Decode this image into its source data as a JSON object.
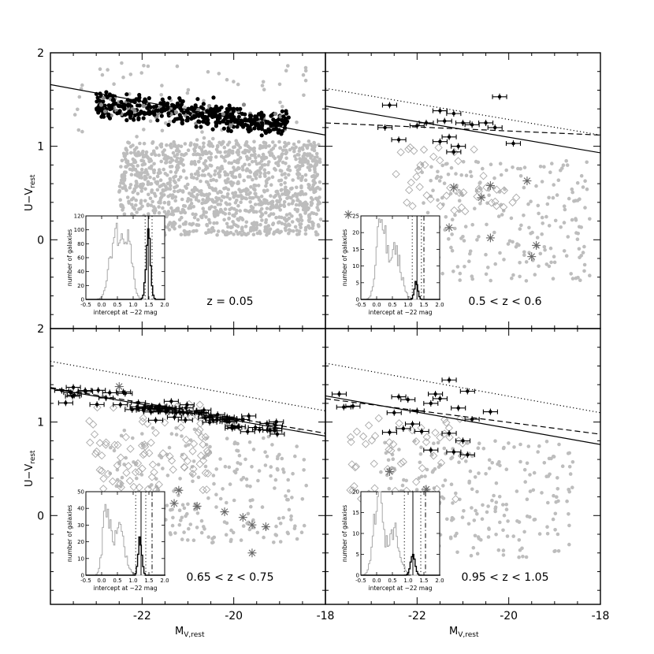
{
  "figure": {
    "xlabel_main": "M",
    "xlabel_sub": "V,rest",
    "ylabel_main": "U−V",
    "ylabel_sub": "rest",
    "x_tick_labels_left": [
      "-22",
      "-20",
      "-18"
    ],
    "x_tick_labels_right": [
      "-22",
      "-20",
      "-18"
    ],
    "y_tick_labels_top": [
      "2",
      "1",
      "0"
    ],
    "y_tick_labels_bottom": [
      "2",
      "1",
      "0"
    ],
    "inset_xlabel": "intercept at −22 mag",
    "inset_ylabel": "number of galaxies",
    "inset_x_tick_labels": [
      "-0.5",
      "0.0",
      "0.5",
      "1.0",
      "1.5",
      "2.0"
    ]
  },
  "chart_data": [
    {
      "type": "scatter",
      "panel": "top-left",
      "label": "z = 0.05",
      "xlim": [
        -24,
        -18
      ],
      "ylim": [
        -0.95,
        2.0
      ],
      "lines": [
        {
          "style": "solid",
          "x": [
            -24,
            -18
          ],
          "y": [
            1.66,
            1.12
          ]
        }
      ],
      "black_clusters": [
        {
          "xmin": -23.0,
          "xmax": -18.8,
          "y_at_min": 1.45,
          "y_at_max": 1.25,
          "scatter": 0.13,
          "n": 480
        }
      ],
      "gray_clusters": [
        {
          "xmin": -22.5,
          "xmax": -18.1,
          "ymin": 0.05,
          "ymax": 1.05,
          "n": 1300
        },
        {
          "xmin": -23.5,
          "xmax": -18.2,
          "ymin": 0.9,
          "ymax": 1.9,
          "n": 80
        }
      ],
      "inset": {
        "ylim": [
          0,
          120
        ],
        "y_tick_labels": [
          "0",
          "20",
          "40",
          "60",
          "80",
          "100",
          "120"
        ],
        "xlim": [
          -0.5,
          2.0
        ],
        "vlines": [
          {
            "style": "solid",
            "x": 1.48
          },
          {
            "style": "dotted",
            "x": 1.38
          },
          {
            "style": "dotted",
            "x": 1.6
          }
        ],
        "gray_hist_peaks": [
          {
            "center": 0.45,
            "width": 0.25,
            "height": 100
          },
          {
            "center": 0.85,
            "width": 0.18,
            "height": 95
          }
        ],
        "black_hist_peaks": [
          {
            "center": 1.48,
            "width": 0.1,
            "height": 90
          }
        ]
      }
    },
    {
      "type": "scatter",
      "panel": "top-right",
      "label": "0.5 < z < 0.6",
      "xlim": [
        -24,
        -18
      ],
      "ylim": [
        -0.95,
        2.0
      ],
      "lines": [
        {
          "style": "dotted",
          "x": [
            -24,
            -18
          ],
          "y": [
            1.62,
            1.12
          ]
        },
        {
          "style": "solid",
          "x": [
            -24,
            -18
          ],
          "y": [
            1.43,
            0.93
          ]
        },
        {
          "style": "dashed",
          "x": [
            -24,
            -18
          ],
          "y": [
            1.25,
            1.12
          ]
        }
      ],
      "errorbar_points": [
        {
          "x": -22.6,
          "y": 1.44
        },
        {
          "x": -22.7,
          "y": 1.2
        },
        {
          "x": -22.4,
          "y": 1.07
        },
        {
          "x": -21.5,
          "y": 1.38
        },
        {
          "x": -21.4,
          "y": 1.27
        },
        {
          "x": -21.2,
          "y": 1.35
        },
        {
          "x": -21.8,
          "y": 1.25
        },
        {
          "x": -21.0,
          "y": 1.25
        },
        {
          "x": -21.3,
          "y": 1.1
        },
        {
          "x": -21.1,
          "y": 1.0
        },
        {
          "x": -20.5,
          "y": 1.25
        },
        {
          "x": -20.3,
          "y": 1.2
        },
        {
          "x": -20.2,
          "y": 1.53
        },
        {
          "x": -19.9,
          "y": 1.03
        },
        {
          "x": -21.5,
          "y": 1.05
        },
        {
          "x": -21.2,
          "y": 0.94
        },
        {
          "x": -22.0,
          "y": 1.22
        },
        {
          "x": -20.8,
          "y": 1.23
        }
      ],
      "diamond_region": {
        "xmin": -22.5,
        "xmax": -19.8,
        "ymin": 0.3,
        "ymax": 1.0,
        "n": 45
      },
      "asterisk_points": [
        {
          "x": -23.5,
          "y": 0.27
        },
        {
          "x": -21.2,
          "y": 0.56
        },
        {
          "x": -20.6,
          "y": 0.45
        },
        {
          "x": -20.4,
          "y": 0.58
        },
        {
          "x": -19.6,
          "y": 0.63
        },
        {
          "x": -21.3,
          "y": 0.13
        },
        {
          "x": -20.4,
          "y": 0.02
        },
        {
          "x": -19.4,
          "y": -0.06
        },
        {
          "x": -19.5,
          "y": -0.18
        }
      ],
      "gray_clusters": [
        {
          "xmin": -22.0,
          "xmax": -18.2,
          "ymin": -0.45,
          "ymax": 0.85,
          "n": 230
        }
      ],
      "inset": {
        "ylim": [
          0,
          25
        ],
        "y_tick_labels": [
          "0",
          "5",
          "10",
          "15",
          "20",
          "25"
        ],
        "xlim": [
          -0.5,
          2.0
        ],
        "vlines": [
          {
            "style": "solid",
            "x": 1.28
          },
          {
            "style": "dotted",
            "x": 1.13
          },
          {
            "style": "dotted",
            "x": 1.42
          },
          {
            "style": "dashdot",
            "x": 1.5
          }
        ],
        "gray_hist_peaks": [
          {
            "center": 0.15,
            "width": 0.2,
            "height": 24
          },
          {
            "center": 0.6,
            "width": 0.25,
            "height": 14
          }
        ],
        "black_hist_peaks": [
          {
            "center": 1.25,
            "width": 0.08,
            "height": 5
          }
        ]
      }
    },
    {
      "type": "scatter",
      "panel": "bottom-left",
      "label": "0.65 < z < 0.75",
      "xlim": [
        -24,
        -18
      ],
      "ylim": [
        -0.95,
        2.0
      ],
      "lines": [
        {
          "style": "dotted",
          "x": [
            -24,
            -18
          ],
          "y": [
            1.65,
            1.12
          ]
        },
        {
          "style": "solid",
          "x": [
            -24,
            -18
          ],
          "y": [
            1.36,
            0.85
          ]
        },
        {
          "style": "dashed",
          "x": [
            -24,
            -18
          ],
          "y": [
            1.37,
            0.88
          ]
        }
      ],
      "errorbar_region": {
        "xmin": -23.8,
        "xmax": -19.0,
        "y_at_min": 1.33,
        "y_at_max": 0.92,
        "scatter": 0.11,
        "n": 80
      },
      "diamond_region": {
        "xmin": -23.2,
        "xmax": -20.5,
        "ymin": 0.25,
        "ymax": 1.2,
        "n": 90
      },
      "asterisk_points": [
        {
          "x": -22.5,
          "y": 1.38
        },
        {
          "x": -21.2,
          "y": 0.27
        },
        {
          "x": -21.3,
          "y": 0.13
        },
        {
          "x": -20.8,
          "y": 0.1
        },
        {
          "x": -20.2,
          "y": 0.04
        },
        {
          "x": -19.8,
          "y": -0.02
        },
        {
          "x": -19.6,
          "y": -0.1
        },
        {
          "x": -19.3,
          "y": -0.12
        },
        {
          "x": -19.6,
          "y": -0.4
        }
      ],
      "gray_clusters": [
        {
          "xmin": -22.7,
          "xmax": -18.4,
          "ymin": -0.3,
          "ymax": 0.95,
          "n": 260
        }
      ],
      "inset": {
        "ylim": [
          0,
          50
        ],
        "y_tick_labels": [
          "0",
          "10",
          "20",
          "30",
          "40",
          "50"
        ],
        "xlim": [
          -0.5,
          2.0
        ],
        "vlines": [
          {
            "style": "solid",
            "x": 1.25
          },
          {
            "style": "dotted",
            "x": 1.08
          },
          {
            "style": "dotted",
            "x": 1.4
          },
          {
            "style": "dashdot",
            "x": 1.6
          }
        ],
        "gray_hist_peaks": [
          {
            "center": 0.15,
            "width": 0.15,
            "height": 42
          },
          {
            "center": 0.55,
            "width": 0.25,
            "height": 28
          }
        ],
        "black_hist_peaks": [
          {
            "center": 1.22,
            "width": 0.08,
            "height": 22
          }
        ]
      }
    },
    {
      "type": "scatter",
      "panel": "bottom-right",
      "label": "0.95 < z < 1.05",
      "xlim": [
        -24,
        -18
      ],
      "ylim": [
        -0.95,
        2.0
      ],
      "lines": [
        {
          "style": "dotted",
          "x": [
            -24,
            -18
          ],
          "y": [
            1.63,
            1.1
          ]
        },
        {
          "style": "solid",
          "x": [
            -24,
            -18
          ],
          "y": [
            1.28,
            0.76
          ]
        },
        {
          "style": "dashed",
          "x": [
            -24,
            -18
          ],
          "y": [
            1.25,
            0.87
          ]
        }
      ],
      "errorbar_points": [
        {
          "x": -23.7,
          "y": 1.3
        },
        {
          "x": -23.4,
          "y": 1.17
        },
        {
          "x": -23.6,
          "y": 1.16
        },
        {
          "x": -22.4,
          "y": 1.27
        },
        {
          "x": -22.2,
          "y": 1.24
        },
        {
          "x": -22.0,
          "y": 1.12
        },
        {
          "x": -22.5,
          "y": 1.1
        },
        {
          "x": -22.3,
          "y": 0.93
        },
        {
          "x": -22.6,
          "y": 0.89
        },
        {
          "x": -21.9,
          "y": 0.9
        },
        {
          "x": -21.6,
          "y": 1.3
        },
        {
          "x": -21.5,
          "y": 1.25
        },
        {
          "x": -21.7,
          "y": 1.2
        },
        {
          "x": -21.3,
          "y": 1.45
        },
        {
          "x": -21.1,
          "y": 1.15
        },
        {
          "x": -20.9,
          "y": 1.33
        },
        {
          "x": -20.8,
          "y": 1.03
        },
        {
          "x": -21.3,
          "y": 0.88
        },
        {
          "x": -21.0,
          "y": 0.8
        },
        {
          "x": -21.2,
          "y": 0.68
        },
        {
          "x": -20.9,
          "y": 0.65
        },
        {
          "x": -20.4,
          "y": 1.11
        },
        {
          "x": -21.7,
          "y": 0.7
        },
        {
          "x": -22.1,
          "y": 0.98
        }
      ],
      "diamond_region": {
        "xmin": -23.5,
        "xmax": -21.0,
        "ymin": 0.15,
        "ymax": 1.05,
        "n": 55
      },
      "asterisk_points": [
        {
          "x": -22.6,
          "y": 0.47
        },
        {
          "x": -22.1,
          "y": 0.22
        },
        {
          "x": -21.8,
          "y": 0.28
        },
        {
          "x": -22.0,
          "y": -0.04
        },
        {
          "x": -21.6,
          "y": -0.22
        }
      ],
      "gray_clusters": [
        {
          "xmin": -22.8,
          "xmax": -18.6,
          "ymin": -0.45,
          "ymax": 0.8,
          "n": 240
        }
      ],
      "inset": {
        "ylim": [
          0,
          20
        ],
        "y_tick_labels": [
          "0",
          "5",
          "10",
          "15",
          "20"
        ],
        "xlim": [
          -0.5,
          2.0
        ],
        "vlines": [
          {
            "style": "solid",
            "x": 1.15
          },
          {
            "style": "dotted",
            "x": 0.88
          },
          {
            "style": "dotted",
            "x": 1.4
          },
          {
            "style": "dashdot",
            "x": 1.55
          }
        ],
        "gray_hist_peaks": [
          {
            "center": 0.05,
            "width": 0.2,
            "height": 19
          },
          {
            "center": 0.55,
            "width": 0.25,
            "height": 11
          }
        ],
        "black_hist_peaks": [
          {
            "center": 1.15,
            "width": 0.1,
            "height": 5
          }
        ]
      }
    }
  ]
}
